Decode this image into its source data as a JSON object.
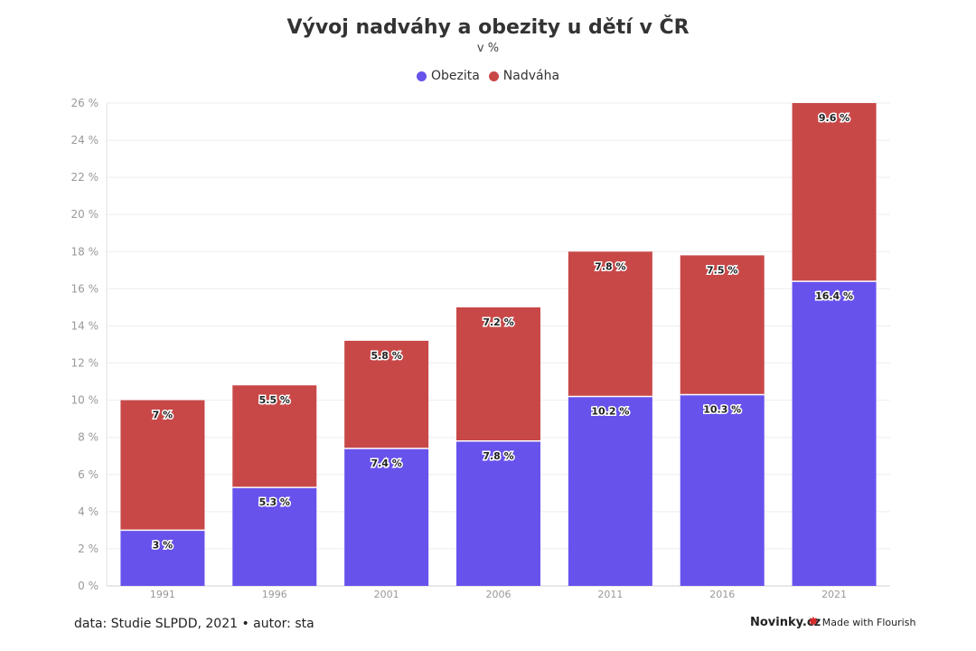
{
  "chart_data": {
    "type": "bar",
    "stacked": true,
    "title": "Vývoj nadváhy a obezity u dětí v ČR",
    "subtitle": "v %",
    "categories": [
      "1991",
      "1996",
      "2001",
      "2006",
      "2011",
      "2016",
      "2021"
    ],
    "series": [
      {
        "name": "Obezita",
        "color": "#6752ec",
        "values": [
          3,
          5.3,
          7.4,
          7.8,
          10.2,
          10.3,
          16.4
        ],
        "labels": [
          "3 %",
          "5.3 %",
          "7.4 %",
          "7.8 %",
          "10.2 %",
          "10.3 %",
          "16.4 %"
        ]
      },
      {
        "name": "Nadváha",
        "color": "#c84848",
        "values": [
          7,
          5.5,
          5.8,
          7.2,
          7.8,
          7.5,
          9.6
        ],
        "labels": [
          "7 %",
          "5.5 %",
          "5.8 %",
          "7.2 %",
          "7.8 %",
          "7.5 %",
          "9.6 %"
        ]
      }
    ],
    "ylim": [
      0,
      26
    ],
    "yticks": [
      0,
      2,
      4,
      6,
      8,
      10,
      12,
      14,
      16,
      18,
      20,
      22,
      24,
      26
    ],
    "ytick_labels": [
      "0 %",
      "2 %",
      "4 %",
      "6 %",
      "8 %",
      "10 %",
      "12 %",
      "14 %",
      "16 %",
      "18 %",
      "20 %",
      "22 %",
      "24 %",
      "26 %"
    ],
    "grid": true,
    "legend_position": "top-center"
  },
  "legend": {
    "items": [
      {
        "label": "Obezita",
        "color": "#6752ec"
      },
      {
        "label": "Nadváha",
        "color": "#c84848"
      }
    ]
  },
  "footer": {
    "source": "data: Studie SLPDD, 2021 • autor: sta",
    "brand": "Novinky.cz",
    "made_with": "Made with Flourish"
  }
}
